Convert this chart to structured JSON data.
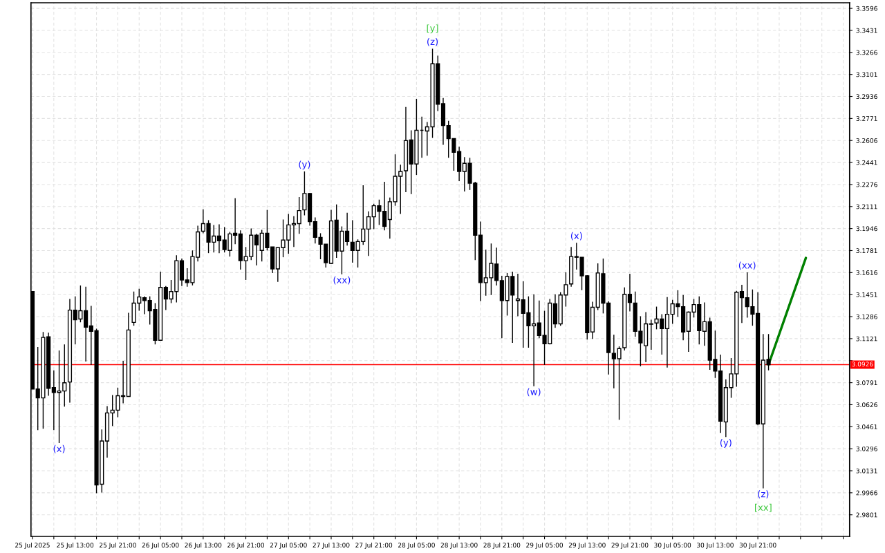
{
  "chart_data": {
    "type": "candlestick",
    "x": [
      "2025-07-25T05:00",
      "2025-07-25T06:00",
      "2025-07-25T07:00",
      "2025-07-25T08:00",
      "2025-07-25T09:00",
      "2025-07-25T10:00",
      "2025-07-25T11:00",
      "2025-07-25T12:00",
      "2025-07-25T13:00",
      "2025-07-25T14:00",
      "2025-07-25T15:00",
      "2025-07-25T16:00",
      "2025-07-25T17:00",
      "2025-07-25T18:00",
      "2025-07-25T19:00",
      "2025-07-25T20:00",
      "2025-07-25T21:00",
      "2025-07-25T22:00",
      "2025-07-25T23:00",
      "2025-07-26T00:00",
      "2025-07-26T01:00",
      "2025-07-26T02:00",
      "2025-07-26T03:00",
      "2025-07-26T04:00",
      "2025-07-26T05:00",
      "2025-07-26T06:00",
      "2025-07-26T07:00",
      "2025-07-26T08:00",
      "2025-07-26T09:00",
      "2025-07-26T10:00",
      "2025-07-26T11:00",
      "2025-07-26T12:00",
      "2025-07-26T13:00",
      "2025-07-26T14:00",
      "2025-07-26T15:00",
      "2025-07-26T16:00",
      "2025-07-26T17:00",
      "2025-07-26T18:00",
      "2025-07-26T19:00",
      "2025-07-26T20:00",
      "2025-07-26T21:00",
      "2025-07-26T22:00",
      "2025-07-26T23:00",
      "2025-07-27T00:00",
      "2025-07-27T01:00",
      "2025-07-27T02:00",
      "2025-07-27T03:00",
      "2025-07-27T04:00",
      "2025-07-27T05:00",
      "2025-07-27T06:00",
      "2025-07-27T07:00",
      "2025-07-27T08:00",
      "2025-07-27T09:00",
      "2025-07-27T10:00",
      "2025-07-27T11:00",
      "2025-07-27T12:00",
      "2025-07-27T13:00",
      "2025-07-27T14:00",
      "2025-07-27T15:00",
      "2025-07-27T16:00",
      "2025-07-27T17:00",
      "2025-07-27T18:00",
      "2025-07-27T19:00",
      "2025-07-27T20:00",
      "2025-07-27T21:00",
      "2025-07-27T22:00",
      "2025-07-27T23:00",
      "2025-07-28T00:00",
      "2025-07-28T01:00",
      "2025-07-28T02:00",
      "2025-07-28T03:00",
      "2025-07-28T04:00",
      "2025-07-28T05:00",
      "2025-07-28T06:00",
      "2025-07-28T07:00",
      "2025-07-28T08:00",
      "2025-07-28T09:00",
      "2025-07-28T10:00",
      "2025-07-28T11:00",
      "2025-07-28T12:00",
      "2025-07-28T13:00",
      "2025-07-28T14:00",
      "2025-07-28T15:00",
      "2025-07-28T16:00",
      "2025-07-28T17:00",
      "2025-07-28T18:00",
      "2025-07-28T19:00",
      "2025-07-28T20:00",
      "2025-07-28T21:00",
      "2025-07-28T22:00",
      "2025-07-28T23:00",
      "2025-07-29T00:00",
      "2025-07-29T01:00",
      "2025-07-29T02:00",
      "2025-07-29T03:00",
      "2025-07-29T04:00",
      "2025-07-29T05:00",
      "2025-07-29T06:00",
      "2025-07-29T07:00",
      "2025-07-29T08:00",
      "2025-07-29T09:00",
      "2025-07-29T10:00",
      "2025-07-29T11:00",
      "2025-07-29T12:00",
      "2025-07-29T13:00",
      "2025-07-29T14:00",
      "2025-07-29T15:00",
      "2025-07-29T16:00",
      "2025-07-29T17:00",
      "2025-07-29T18:00",
      "2025-07-29T19:00",
      "2025-07-29T20:00",
      "2025-07-29T21:00",
      "2025-07-29T22:00",
      "2025-07-29T23:00",
      "2025-07-30T00:00",
      "2025-07-30T01:00",
      "2025-07-30T02:00",
      "2025-07-30T03:00",
      "2025-07-30T04:00",
      "2025-07-30T05:00",
      "2025-07-30T06:00",
      "2025-07-30T07:00",
      "2025-07-30T08:00",
      "2025-07-30T09:00",
      "2025-07-30T10:00",
      "2025-07-30T11:00",
      "2025-07-30T12:00",
      "2025-07-30T13:00",
      "2025-07-30T14:00",
      "2025-07-30T15:00",
      "2025-07-30T16:00",
      "2025-07-30T17:00",
      "2025-07-30T18:00",
      "2025-07-30T19:00",
      "2025-07-30T20:00",
      "2025-07-30T21:00",
      "2025-07-30T22:00",
      "2025-07-30T23:00"
    ],
    "ohlc": [
      [
        3.1474,
        3.1474,
        3.0744,
        3.0744
      ],
      [
        3.0744,
        3.1058,
        3.0436,
        3.0677
      ],
      [
        3.0677,
        3.1171,
        3.0446,
        3.113
      ],
      [
        3.1135,
        3.1166,
        3.0693,
        3.0749
      ],
      [
        3.0754,
        3.0883,
        3.0436,
        3.0718
      ],
      [
        3.0718,
        3.1032,
        3.0338,
        3.0729
      ],
      [
        3.0729,
        3.1078,
        3.0611,
        3.079
      ],
      [
        3.0796,
        3.1418,
        3.0641,
        3.1335
      ],
      [
        3.1335,
        3.1438,
        3.1078,
        3.1263
      ],
      [
        3.1268,
        3.152,
        3.1243,
        3.133
      ],
      [
        3.133,
        3.151,
        3.095,
        3.1207
      ],
      [
        3.1217,
        3.1366,
        3.0924,
        3.1176
      ],
      [
        3.1181,
        3.1196,
        2.9963,
        3.0025
      ],
      [
        3.003,
        3.0441,
        2.9968,
        3.0354
      ],
      [
        3.0354,
        3.0616,
        3.023,
        3.0564
      ],
      [
        3.0564,
        3.0698,
        3.0467,
        3.0585
      ],
      [
        3.0585,
        3.0754,
        3.0533,
        3.0693
      ],
      [
        3.0693,
        3.0955,
        3.0636,
        3.0688
      ],
      [
        3.0688,
        3.1315,
        3.0688,
        3.1186
      ],
      [
        3.1243,
        3.1474,
        3.1217,
        3.1387
      ],
      [
        3.1387,
        3.1495,
        3.133,
        3.1433
      ],
      [
        3.1428,
        3.1438,
        3.1304,
        3.1407
      ],
      [
        3.1407,
        3.1438,
        3.1227,
        3.133
      ],
      [
        3.134,
        3.1387,
        3.1078,
        3.1109
      ],
      [
        3.1109,
        3.1623,
        3.1109,
        3.1505
      ],
      [
        3.1505,
        3.1515,
        3.1335,
        3.1418
      ],
      [
        3.1418,
        3.1561,
        3.1387,
        3.1474
      ],
      [
        3.1474,
        3.1746,
        3.1392,
        3.1705
      ],
      [
        3.1705,
        3.1721,
        3.1515,
        3.1561
      ],
      [
        3.1561,
        3.1649,
        3.151,
        3.1541
      ],
      [
        3.1541,
        3.1782,
        3.152,
        3.1736
      ],
      [
        3.1731,
        3.1967,
        3.17,
        3.1921
      ],
      [
        3.1926,
        3.2091,
        3.1911,
        3.1983
      ],
      [
        3.1983,
        3.2009,
        3.1762,
        3.1844
      ],
      [
        3.1844,
        3.1973,
        3.1767,
        3.189
      ],
      [
        3.189,
        3.1978,
        3.1762,
        3.1854
      ],
      [
        3.186,
        3.1957,
        3.1767,
        3.1788
      ],
      [
        3.1782,
        3.1921,
        3.1736,
        3.1906
      ],
      [
        3.1911,
        3.2173,
        3.1829,
        3.1896
      ],
      [
        3.1906,
        3.1932,
        3.1639,
        3.1705
      ],
      [
        3.1705,
        3.1808,
        3.1561,
        3.1736
      ],
      [
        3.1736,
        3.1947,
        3.171,
        3.1896
      ],
      [
        3.1896,
        3.1906,
        3.1669,
        3.1824
      ],
      [
        3.1782,
        3.1937,
        3.17,
        3.1911
      ],
      [
        3.1911,
        3.2086,
        3.1782,
        3.1803
      ],
      [
        3.1808,
        3.1808,
        3.1613,
        3.1644
      ],
      [
        3.1644,
        3.1803,
        3.1546,
        3.1803
      ],
      [
        3.1803,
        3.2014,
        3.1731,
        3.186
      ],
      [
        3.186,
        3.2055,
        3.1757,
        3.1973
      ],
      [
        3.1973,
        3.2039,
        3.1808,
        3.1983
      ],
      [
        3.1983,
        3.2183,
        3.1906,
        3.2081
      ],
      [
        3.2086,
        3.2374,
        3.2045,
        3.2209
      ],
      [
        3.2209,
        3.2214,
        3.1967,
        3.1998
      ],
      [
        3.1998,
        3.2029,
        3.1834,
        3.188
      ],
      [
        3.188,
        3.1911,
        3.1716,
        3.1829
      ],
      [
        3.1829,
        3.1829,
        3.1654,
        3.169
      ],
      [
        3.1685,
        3.2086,
        3.168,
        3.2003
      ],
      [
        3.2009,
        3.2127,
        3.1726,
        3.1777
      ],
      [
        3.1777,
        3.1962,
        3.1603,
        3.1926
      ],
      [
        3.1926,
        3.2065,
        3.1818,
        3.1849
      ],
      [
        3.1844,
        3.2009,
        3.169,
        3.1782
      ],
      [
        3.1782,
        3.1865,
        3.1654,
        3.1849
      ],
      [
        3.1849,
        3.2271,
        3.1824,
        3.1942
      ],
      [
        3.1942,
        3.2075,
        3.1741,
        3.2034
      ],
      [
        3.2034,
        3.2132,
        3.1942,
        3.2117
      ],
      [
        3.2117,
        3.2163,
        3.1973,
        3.2075
      ],
      [
        3.2075,
        3.2296,
        3.1932,
        3.1962
      ],
      [
        3.2014,
        3.2178,
        3.187,
        3.2147
      ],
      [
        3.2147,
        3.2502,
        3.2117,
        3.2338
      ],
      [
        3.2338,
        3.2425,
        3.2055,
        3.2374
      ],
      [
        3.2379,
        3.2857,
        3.2219,
        3.2605
      ],
      [
        3.261,
        3.2682,
        3.2204,
        3.243
      ],
      [
        3.243,
        3.2918,
        3.2348,
        3.2682
      ],
      [
        3.2682,
        3.2785,
        3.2476,
        3.2682
      ],
      [
        3.2677,
        3.2744,
        3.2492,
        3.2708
      ],
      [
        3.2708,
        3.3294,
        3.2625,
        3.3181
      ],
      [
        3.3181,
        3.3242,
        3.2826,
        3.2877
      ],
      [
        3.2882,
        3.2924,
        3.2574,
        3.2718
      ],
      [
        3.2718,
        3.2754,
        3.2476,
        3.262
      ],
      [
        3.262,
        3.262,
        3.2379,
        3.2517
      ],
      [
        3.2523,
        3.2559,
        3.2302,
        3.2374
      ],
      [
        3.2374,
        3.2481,
        3.2224,
        3.2435
      ],
      [
        3.2435,
        3.2476,
        3.2235,
        3.2286
      ],
      [
        3.2286,
        3.2296,
        3.171,
        3.1896
      ],
      [
        3.1896,
        3.1998,
        3.1402,
        3.1541
      ],
      [
        3.1541,
        3.1788,
        3.1443,
        3.1577
      ],
      [
        3.1577,
        3.1834,
        3.1448,
        3.1685
      ],
      [
        3.168,
        3.1803,
        3.152,
        3.1556
      ],
      [
        3.1556,
        3.1592,
        3.1125,
        3.1407
      ],
      [
        3.1407,
        3.1613,
        3.1294,
        3.1587
      ],
      [
        3.1587,
        3.1623,
        3.1089,
        3.1448
      ],
      [
        3.1407,
        3.1608,
        3.1289,
        3.1418
      ],
      [
        3.1412,
        3.1551,
        3.1053,
        3.131
      ],
      [
        3.1315,
        3.1438,
        3.1053,
        3.1217
      ],
      [
        3.1217,
        3.1453,
        3.0765,
        3.1232
      ],
      [
        3.1238,
        3.1407,
        3.1125,
        3.1145
      ],
      [
        3.1145,
        3.133,
        3.0924,
        3.1083
      ],
      [
        3.1083,
        3.1418,
        3.1078,
        3.1387
      ],
      [
        3.1382,
        3.1453,
        3.1202,
        3.1232
      ],
      [
        3.1232,
        3.1469,
        3.1217,
        3.1448
      ],
      [
        3.1448,
        3.1618,
        3.1361,
        3.1525
      ],
      [
        3.1531,
        3.1808,
        3.151,
        3.1736
      ],
      [
        3.1736,
        3.1839,
        3.1639,
        3.1731
      ],
      [
        3.1731,
        3.1731,
        3.1484,
        3.1592
      ],
      [
        3.1592,
        3.1597,
        3.1114,
        3.1166
      ],
      [
        3.1171,
        3.1397,
        3.1119,
        3.1356
      ],
      [
        3.1356,
        3.1685,
        3.1335,
        3.1613
      ],
      [
        3.1608,
        3.1721,
        3.131,
        3.1387
      ],
      [
        3.1387,
        3.1402,
        3.0852,
        3.1017
      ],
      [
        3.1011,
        3.115,
        3.0749,
        3.097
      ],
      [
        3.097,
        3.1063,
        3.0513,
        3.1047
      ],
      [
        3.1053,
        3.1505,
        3.1032,
        3.1453
      ],
      [
        3.1453,
        3.1608,
        3.1325,
        3.1392
      ],
      [
        3.1387,
        3.1474,
        3.1135,
        3.1176
      ],
      [
        3.1176,
        3.1289,
        3.0914,
        3.1089
      ],
      [
        3.1068,
        3.132,
        3.0945,
        3.1232
      ],
      [
        3.1232,
        3.1263,
        3.1037,
        3.1229
      ],
      [
        3.1238,
        3.1361,
        3.1191,
        3.1268
      ],
      [
        3.1268,
        3.1304,
        3.1001,
        3.1196
      ],
      [
        3.1196,
        3.1433,
        3.0904,
        3.1304
      ],
      [
        3.1304,
        3.1412,
        3.1232,
        3.1382
      ],
      [
        3.1382,
        3.1484,
        3.1284,
        3.1361
      ],
      [
        3.1361,
        3.1448,
        3.1109,
        3.1171
      ],
      [
        3.1176,
        3.1325,
        3.1022,
        3.132
      ],
      [
        3.132,
        3.1418,
        3.1279,
        3.1376
      ],
      [
        3.1376,
        3.1438,
        3.1078,
        3.1181
      ],
      [
        3.1176,
        3.1392,
        3.1068,
        3.1248
      ],
      [
        3.1248,
        3.1279,
        3.0888,
        3.096
      ],
      [
        3.0965,
        3.1181,
        3.0826,
        3.0878
      ],
      [
        3.0878,
        3.1001,
        3.0415,
        3.0503
      ],
      [
        3.0497,
        3.0816,
        3.0384,
        3.0754
      ],
      [
        3.0754,
        3.0975,
        3.0677,
        3.0857
      ],
      [
        3.0857,
        3.1479,
        3.076,
        3.1469
      ],
      [
        3.1474,
        3.1525,
        3.1238,
        3.1428
      ],
      [
        3.1428,
        3.1618,
        3.1279,
        3.1361
      ],
      [
        3.1361,
        3.1489,
        3.1217,
        3.1304
      ],
      [
        3.131,
        3.1469,
        3.0472,
        3.0482
      ],
      [
        3.0482,
        3.1155,
        2.9999,
        3.096
      ],
      [
        3.0965,
        3.1155,
        3.0883,
        3.0926
      ]
    ],
    "series": [
      {
        "type": "line",
        "x": [
          "2025-07-30T23:00",
          "2025-07-31T06:00"
        ],
        "values": [
          3.0926,
          3.1726
        ],
        "color": "#008000"
      }
    ],
    "xlim": [
      "2025-07-25T04:43",
      "2025-07-31T14:12"
    ],
    "ylim": [
      2.9639,
      3.3638
    ],
    "xticks": [
      {
        "value": "2025-07-25T05:00",
        "label": "25 Jul 2025"
      },
      {
        "value": "2025-07-25T09:00",
        "label": null
      },
      {
        "value": "2025-07-25T13:00",
        "label": "25 Jul 13:00"
      },
      {
        "value": "2025-07-25T17:00",
        "label": null
      },
      {
        "value": "2025-07-25T21:00",
        "label": "25 Jul 21:00"
      },
      {
        "value": "2025-07-26T01:00",
        "label": null
      },
      {
        "value": "2025-07-26T05:00",
        "label": "26 Jul 05:00"
      },
      {
        "value": "2025-07-26T09:00",
        "label": null
      },
      {
        "value": "2025-07-26T13:00",
        "label": "26 Jul 13:00"
      },
      {
        "value": "2025-07-26T17:00",
        "label": null
      },
      {
        "value": "2025-07-26T21:00",
        "label": "26 Jul 21:00"
      },
      {
        "value": "2025-07-27T01:00",
        "label": null
      },
      {
        "value": "2025-07-27T05:00",
        "label": "27 Jul 05:00"
      },
      {
        "value": "2025-07-27T09:00",
        "label": null
      },
      {
        "value": "2025-07-27T13:00",
        "label": "27 Jul 13:00"
      },
      {
        "value": "2025-07-27T17:00",
        "label": null
      },
      {
        "value": "2025-07-27T21:00",
        "label": "27 Jul 21:00"
      },
      {
        "value": "2025-07-28T01:00",
        "label": null
      },
      {
        "value": "2025-07-28T05:00",
        "label": "28 Jul 05:00"
      },
      {
        "value": "2025-07-28T09:00",
        "label": null
      },
      {
        "value": "2025-07-28T13:00",
        "label": "28 Jul 13:00"
      },
      {
        "value": "2025-07-28T17:00",
        "label": null
      },
      {
        "value": "2025-07-28T21:00",
        "label": "28 Jul 21:00"
      },
      {
        "value": "2025-07-29T01:00",
        "label": null
      },
      {
        "value": "2025-07-29T05:00",
        "label": "29 Jul 05:00"
      },
      {
        "value": "2025-07-29T09:00",
        "label": null
      },
      {
        "value": "2025-07-29T13:00",
        "label": "29 Jul 13:00"
      },
      {
        "value": "2025-07-29T17:00",
        "label": null
      },
      {
        "value": "2025-07-29T21:00",
        "label": "29 Jul 21:00"
      },
      {
        "value": "2025-07-30T01:00",
        "label": null
      },
      {
        "value": "2025-07-30T05:00",
        "label": "30 Jul 05:00"
      },
      {
        "value": "2025-07-30T09:00",
        "label": null
      },
      {
        "value": "2025-07-30T13:00",
        "label": "30 Jul 13:00"
      },
      {
        "value": "2025-07-30T17:00",
        "label": null
      },
      {
        "value": "2025-07-30T21:00",
        "label": "30 Jul 21:00"
      },
      {
        "value": "2025-07-31T01:00",
        "label": null
      },
      {
        "value": "2025-07-31T05:00",
        "label": null
      },
      {
        "value": "2025-07-31T09:00",
        "label": null
      },
      {
        "value": "2025-07-31T13:00",
        "label": null
      }
    ],
    "yticks": [
      2.9801,
      2.9966,
      3.0131,
      3.0296,
      3.0461,
      3.0626,
      3.0791,
      {
        "value": 3.0956,
        "label": null
      },
      3.1121,
      3.1286,
      3.1451,
      3.1616,
      3.1781,
      3.1946,
      3.2111,
      3.2276,
      3.2441,
      3.2606,
      3.2771,
      3.2936,
      3.3101,
      3.3266,
      3.3431,
      3.3596
    ],
    "grid": true,
    "ref_lines": [
      {
        "axis": "y",
        "value": 3.0926,
        "label": "3.0926",
        "color": "#ff0000"
      }
    ],
    "annotations": [
      {
        "text": "(x)",
        "x": "2025-07-25T10:00",
        "y": 3.0338
      },
      {
        "text": "(y)",
        "x": "2025-07-27T08:00",
        "y": 3.2374
      },
      {
        "text": "(xx)",
        "x": "2025-07-27T15:00",
        "y": 3.1603
      },
      {
        "text": "(z)",
        "x": "2025-07-28T08:00",
        "y": 3.3294
      },
      {
        "text": "[y]",
        "x": "2025-07-28T08:00",
        "y": 3.3294
      },
      {
        "text": "(w)",
        "x": "2025-07-29T03:00",
        "y": 3.0765
      },
      {
        "text": "(x)",
        "x": "2025-07-29T11:00",
        "y": 3.1839
      },
      {
        "text": "(y)",
        "x": "2025-07-30T15:00",
        "y": 3.0384
      },
      {
        "text": "(xx)",
        "x": "2025-07-30T19:00",
        "y": 3.1618
      },
      {
        "text": "(z)",
        "x": "2025-07-30T22:00",
        "y": 2.9999
      },
      {
        "text": "[xx]",
        "x": "2025-07-30T22:00",
        "y": 2.9999
      }
    ]
  }
}
